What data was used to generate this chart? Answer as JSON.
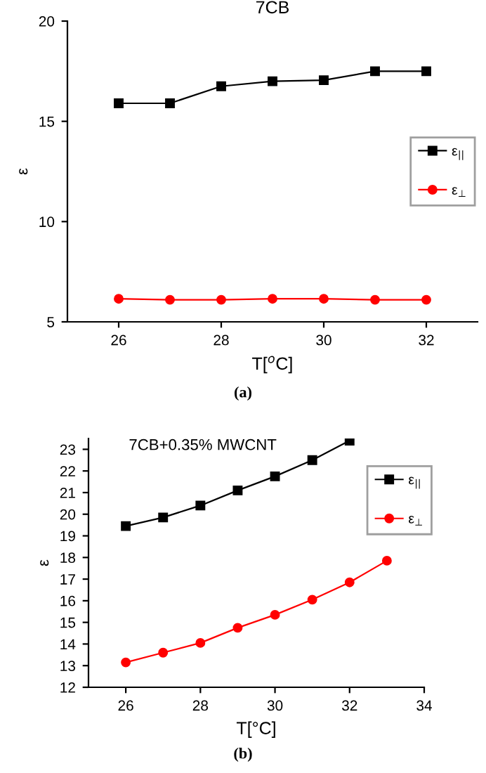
{
  "chart_data": [
    {
      "type": "line",
      "title": "7CB",
      "xlabel": "T[$^{o}$C]",
      "ylabel": "ε",
      "x": [
        26,
        27,
        28,
        29,
        30,
        31,
        32
      ],
      "series": [
        {
          "name": "ε$_{||}$",
          "color": "#000000",
          "marker": "square",
          "values": [
            15.9,
            15.9,
            16.75,
            17.0,
            17.05,
            17.5,
            17.5
          ]
        },
        {
          "name": "ε$_{⊥}$",
          "color": "#ff0000",
          "marker": "circle",
          "values": [
            6.15,
            6.1,
            6.1,
            6.15,
            6.15,
            6.1,
            6.1
          ]
        }
      ],
      "xlim": [
        25,
        33
      ],
      "xticks": [
        26,
        28,
        30,
        32
      ],
      "ylim": [
        5,
        20
      ],
      "yticks": [
        5,
        10,
        15,
        20
      ],
      "legend": "right",
      "grid": false,
      "annotations": [
        "(a)"
      ]
    },
    {
      "type": "line",
      "xlabel": "T[°C]",
      "ylabel": "ε",
      "series": [
        {
          "name": "ε$_{||}$",
          "color": "#000000",
          "marker": "square",
          "x": [
            26,
            27,
            28,
            29,
            30,
            31,
            32
          ],
          "values": [
            19.45,
            19.85,
            20.4,
            21.1,
            21.75,
            22.5,
            23.4
          ]
        },
        {
          "name": "ε$_{⊥}$",
          "color": "#ff0000",
          "marker": "circle",
          "x": [
            26,
            27,
            28,
            29,
            30,
            31,
            32,
            33
          ],
          "values": [
            13.15,
            13.6,
            14.05,
            14.75,
            15.35,
            16.05,
            16.85,
            17.85
          ]
        }
      ],
      "xlim": [
        25,
        34
      ],
      "xticks": [
        26,
        28,
        30,
        32,
        34
      ],
      "ylim": [
        12,
        23.5
      ],
      "yticks": [
        12,
        13,
        14,
        15,
        16,
        17,
        18,
        19,
        20,
        21,
        22,
        23
      ],
      "legend": "top right",
      "grid": false,
      "annotations": [
        "7CB+0.35% MWCNT",
        "(b)"
      ]
    }
  ]
}
